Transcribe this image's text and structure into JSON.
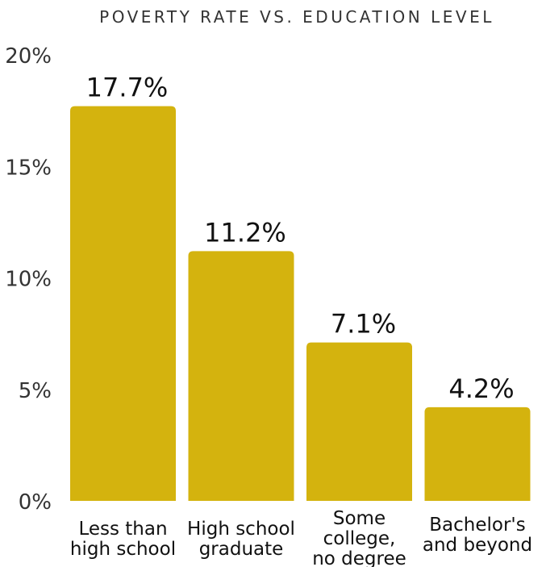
{
  "chart_data": {
    "type": "bar",
    "title": "POVERTY RATE VS. EDUCATION LEVEL",
    "xlabel": "",
    "ylabel": "",
    "categories": [
      [
        "Less than",
        "high school"
      ],
      [
        "High school",
        "graduate"
      ],
      [
        "Some",
        "college,",
        "no degree"
      ],
      [
        "Bachelor's",
        "and beyond"
      ]
    ],
    "values": [
      17.7,
      11.2,
      7.1,
      4.2
    ],
    "value_labels": [
      "17.7%",
      "11.2%",
      "7.1%",
      "4.2%"
    ],
    "ylim": [
      0,
      20
    ],
    "yticks": [
      0,
      5,
      10,
      15,
      20
    ],
    "ytick_labels": [
      "0%",
      "5%",
      "10%",
      "15%",
      "20%"
    ],
    "grid": false,
    "legend": "none",
    "colors": {
      "bar": "#D4B30E",
      "text": "#111111"
    }
  }
}
